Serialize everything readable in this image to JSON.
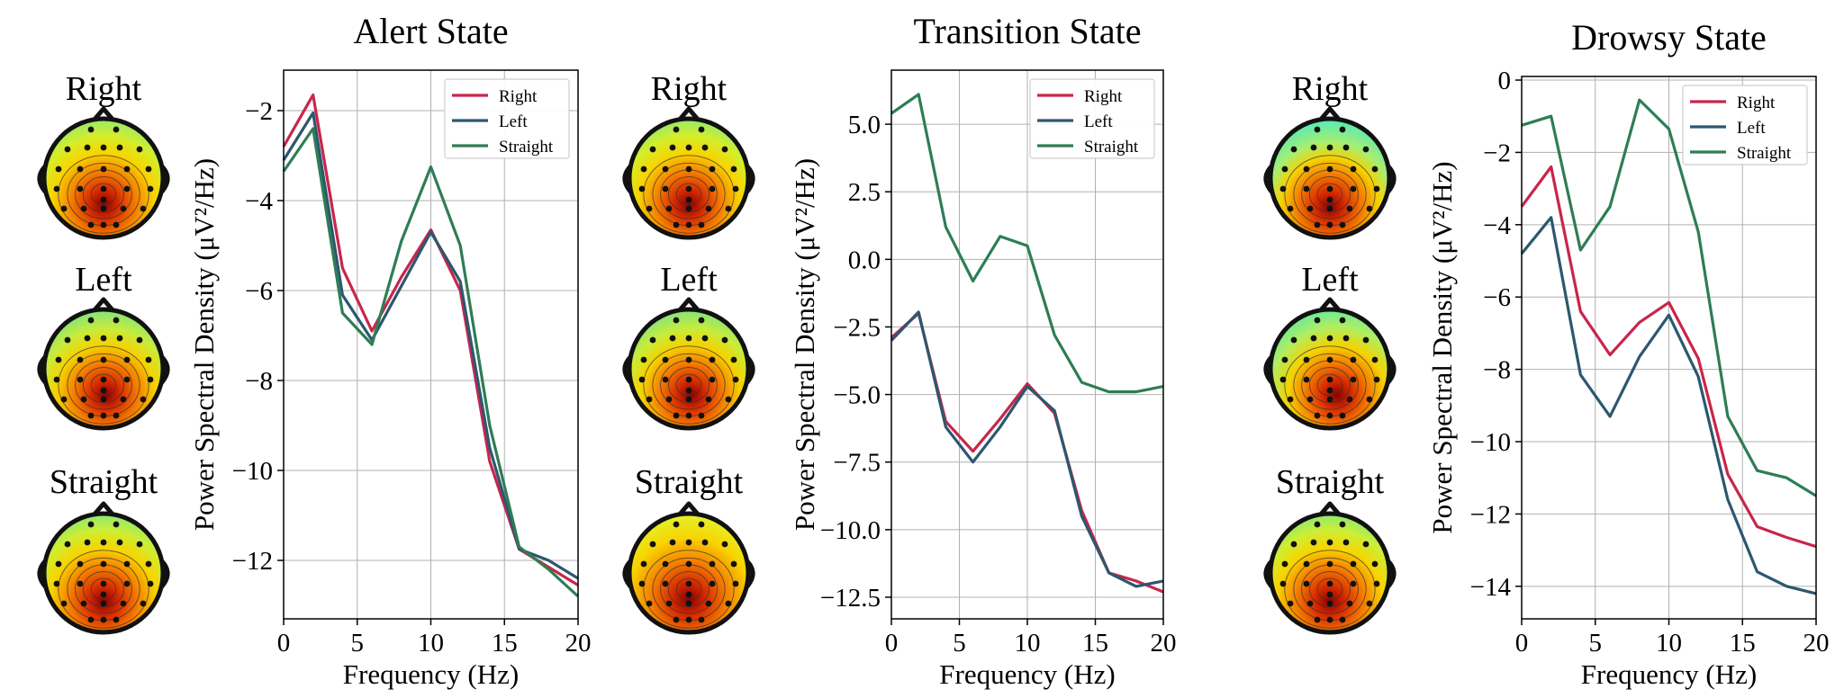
{
  "colors": {
    "Right": "#c8264a",
    "Left": "#2c5770",
    "Straight": "#2e7d55",
    "grid": "#b0b0b0",
    "axis": "#000000"
  },
  "topomap_labels": [
    "Right",
    "Left",
    "Straight"
  ],
  "chart_data": [
    {
      "type": "line",
      "title": "Alert State",
      "xlabel": "Frequency (Hz)",
      "ylabel": "Power Spectral Density (μV²/Hz)",
      "xlim": [
        0,
        20
      ],
      "ylim": [
        -13.3,
        -1.1
      ],
      "xticks": [
        0,
        5,
        10,
        15,
        20
      ],
      "yticks": [
        -2,
        -4,
        -6,
        -8,
        -10,
        -12
      ],
      "legend": "top-right",
      "x": [
        0,
        2,
        4,
        6,
        8,
        10,
        12,
        14,
        16,
        18,
        20
      ],
      "series": [
        {
          "name": "Right",
          "values": [
            -2.8,
            -1.65,
            -5.5,
            -6.9,
            -5.7,
            -4.65,
            -6.0,
            -9.8,
            -11.75,
            -12.15,
            -12.55
          ]
        },
        {
          "name": "Left",
          "values": [
            -3.1,
            -2.05,
            -6.1,
            -7.1,
            -5.9,
            -4.7,
            -5.8,
            -9.5,
            -11.75,
            -12.0,
            -12.4
          ]
        },
        {
          "name": "Straight",
          "values": [
            -3.35,
            -2.4,
            -6.5,
            -7.2,
            -4.9,
            -3.25,
            -5.0,
            -9.0,
            -11.7,
            -12.2,
            -12.8
          ]
        }
      ],
      "topomaps": [
        "right",
        "left",
        "straight"
      ]
    },
    {
      "type": "line",
      "title": "Transition State",
      "xlabel": "Frequency (Hz)",
      "ylabel": "Power Spectral Density (μV²/Hz)",
      "xlim": [
        0,
        20
      ],
      "ylim": [
        -13.3,
        7.0
      ],
      "xticks": [
        0,
        5,
        10,
        15,
        20
      ],
      "yticks": [
        5.0,
        2.5,
        0.0,
        -2.5,
        -5.0,
        -7.5,
        -10.0,
        -12.5
      ],
      "legend": "top-right",
      "x": [
        0,
        2,
        4,
        6,
        8,
        10,
        12,
        14,
        16,
        18,
        20
      ],
      "series": [
        {
          "name": "Right",
          "values": [
            -2.9,
            -2.0,
            -6.0,
            -7.1,
            -5.9,
            -4.6,
            -5.7,
            -9.3,
            -11.6,
            -11.9,
            -12.3
          ]
        },
        {
          "name": "Left",
          "values": [
            -3.0,
            -1.95,
            -6.2,
            -7.5,
            -6.2,
            -4.7,
            -5.6,
            -9.5,
            -11.6,
            -12.1,
            -11.9
          ]
        },
        {
          "name": "Straight",
          "values": [
            5.4,
            6.1,
            1.2,
            -0.8,
            0.85,
            0.5,
            -2.8,
            -4.55,
            -4.9,
            -4.9,
            -4.7
          ]
        }
      ],
      "topomaps": [
        "right",
        "left",
        "straight"
      ]
    },
    {
      "type": "line",
      "title": "Drowsy State",
      "xlabel": "Frequency (Hz)",
      "ylabel": "Power Spectral Density (μV²/Hz)",
      "xlim": [
        0,
        20
      ],
      "ylim": [
        -14.9,
        0.1
      ],
      "xticks": [
        0,
        5,
        10,
        15,
        20
      ],
      "yticks": [
        0,
        -2,
        -4,
        -6,
        -8,
        -10,
        -12,
        -14
      ],
      "legend": "top-right",
      "x": [
        0,
        2,
        4,
        6,
        8,
        10,
        12,
        14,
        16,
        18,
        20
      ],
      "series": [
        {
          "name": "Right",
          "values": [
            -3.5,
            -2.4,
            -6.4,
            -7.6,
            -6.7,
            -6.15,
            -7.7,
            -10.9,
            -12.35,
            -12.65,
            -12.9
          ]
        },
        {
          "name": "Left",
          "values": [
            -4.8,
            -3.8,
            -8.15,
            -9.3,
            -7.65,
            -6.5,
            -8.2,
            -11.6,
            -13.6,
            -14.0,
            -14.2
          ]
        },
        {
          "name": "Straight",
          "values": [
            -1.25,
            -1.0,
            -4.7,
            -3.5,
            -0.55,
            -1.35,
            -4.2,
            -9.3,
            -10.8,
            -11.0,
            -11.5
          ]
        }
      ],
      "topomaps": [
        "right",
        "left",
        "straight_warm"
      ]
    }
  ]
}
